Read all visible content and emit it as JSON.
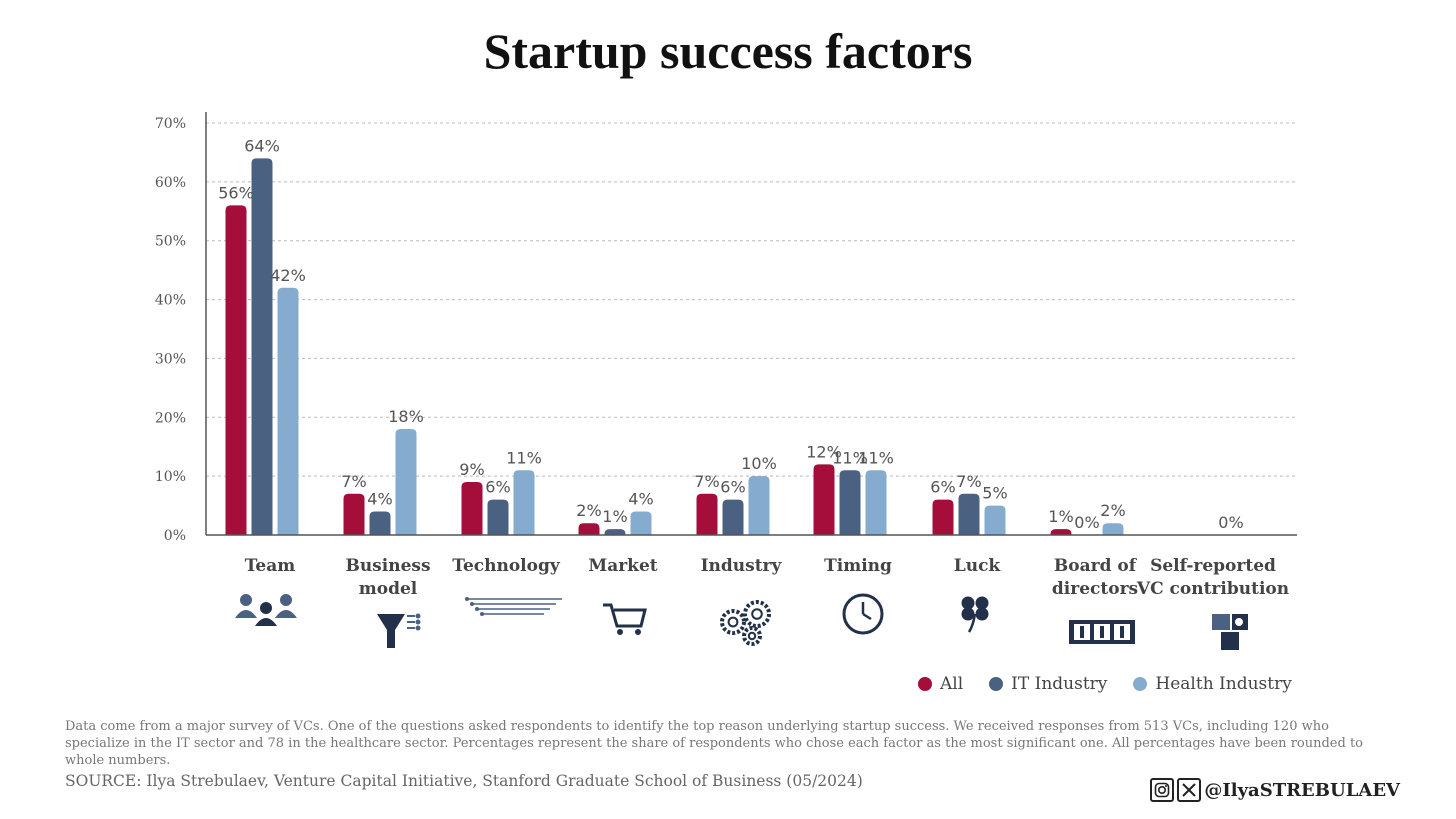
{
  "title": "Startup success factors",
  "chart_data": {
    "type": "bar",
    "categories": [
      "Team",
      "Business model",
      "Technology",
      "Market",
      "Industry",
      "Timing",
      "Luck",
      "Board of directors",
      "Self-reported VC contribution"
    ],
    "category_labels": [
      [
        "Team"
      ],
      [
        "Business",
        "model"
      ],
      [
        "Technology"
      ],
      [
        "Market"
      ],
      [
        "Industry"
      ],
      [
        "Timing"
      ],
      [
        "Luck"
      ],
      [
        "Board of",
        "directors"
      ],
      [
        "Self-reported",
        "VC contribution"
      ]
    ],
    "category_icons": [
      "team-icon",
      "funnel-icon",
      "circuit-icon",
      "cart-icon",
      "gears-icon",
      "clock-icon",
      "clover-icon",
      "board-icon",
      "puzzle-icon"
    ],
    "series": [
      {
        "name": "All",
        "color": "#A50D3B",
        "values": [
          56,
          7,
          9,
          2,
          7,
          12,
          6,
          1,
          null
        ],
        "labels": [
          "56%",
          "7%",
          "9%",
          "2%",
          "7%",
          "12%",
          "6%",
          "1%",
          null
        ]
      },
      {
        "name": "IT Industry",
        "color": "#4B6182",
        "values": [
          64,
          4,
          6,
          1,
          6,
          11,
          7,
          0,
          null
        ],
        "labels": [
          "64%",
          "4%",
          "6%",
          "1%",
          "6%",
          "11%",
          "7%",
          "0%",
          null
        ]
      },
      {
        "name": "Health Industry",
        "color": "#85ACCF",
        "values": [
          42,
          18,
          11,
          4,
          10,
          11,
          5,
          2,
          0
        ],
        "labels": [
          "42%",
          "18%",
          "11%",
          "4%",
          "10%",
          "11%",
          "5%",
          "2%",
          "0%"
        ]
      }
    ],
    "yticks": [
      "0%",
      "10%",
      "20%",
      "30%",
      "40%",
      "50%",
      "60%",
      "70%"
    ],
    "ylim": [
      0,
      70
    ],
    "grid": true,
    "legend_position": "bottom-right"
  },
  "legend": [
    {
      "label": "All",
      "color": "#A50D3B"
    },
    {
      "label": "IT Industry",
      "color": "#4B6182"
    },
    {
      "label": "Health Industry",
      "color": "#85ACCF"
    }
  ],
  "note": "Data come from a major survey of VCs. One of the questions asked respondents to identify the top reason underlying startup success. We received responses from 513 VCs, including 120 who specialize in the IT sector and 78 in the healthcare sector. Percentages represent the share of respondents who chose each factor as the most significant one. All percentages have been rounded to whole numbers.",
  "source": "SOURCE: Ilya Strebulaev, Venture Capital Initiative, Stanford Graduate School of Business (05/2024)",
  "social": {
    "icons": [
      "instagram-icon",
      "x-icon"
    ],
    "handle": "@IlyaSTREBULAEV"
  }
}
